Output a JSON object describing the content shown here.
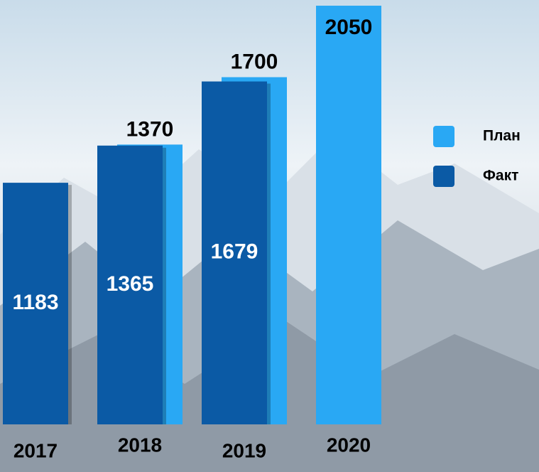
{
  "chart_data": {
    "type": "bar",
    "categories": [
      "2017",
      "2018",
      "2019",
      "2020"
    ],
    "series": [
      {
        "name": "План",
        "color": "#29a8f4",
        "values": [
          null,
          1370,
          1700,
          2050
        ]
      },
      {
        "name": "Факт",
        "color": "#0b5aa5",
        "values": [
          1183,
          1365,
          1679,
          null
        ]
      }
    ],
    "legend": "right"
  }
}
